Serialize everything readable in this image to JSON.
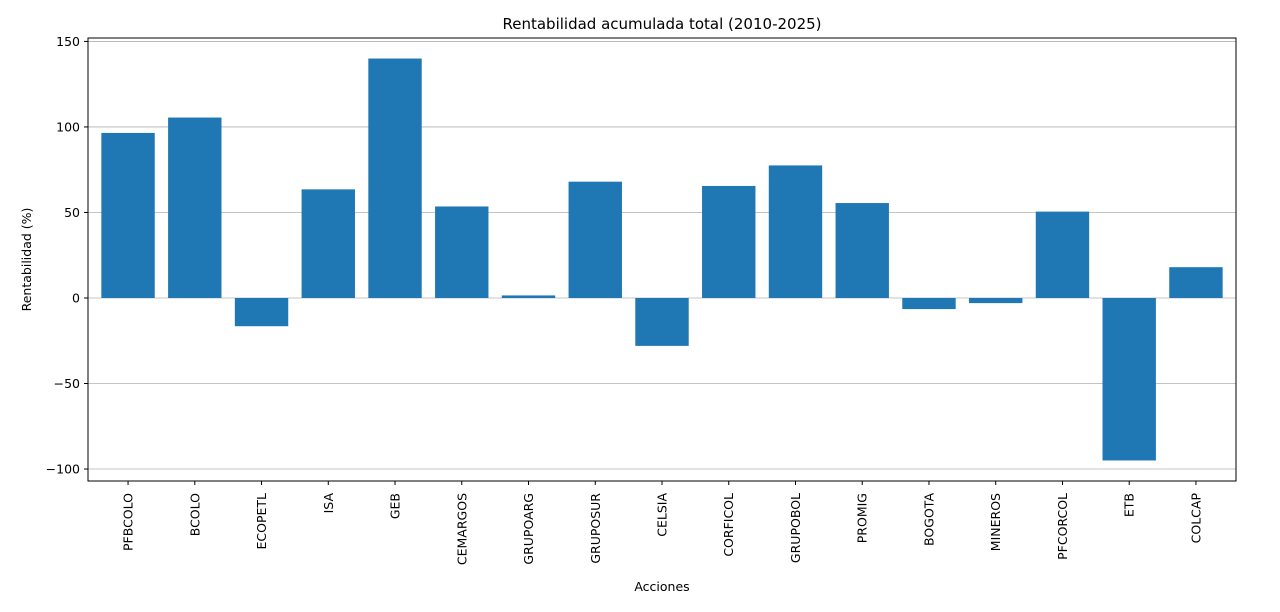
{
  "chart_data": {
    "type": "bar",
    "title": "Rentabilidad acumulada total (2010-2025)",
    "xlabel": "Acciones",
    "ylabel": "Rentabilidad (%)",
    "categories": [
      "PFBCOLO",
      "BCOLO",
      "ECOPETL",
      "ISA",
      "GEB",
      "CEMARGOS",
      "GRUPOARG",
      "GRUPOSUR",
      "CELSIA",
      "CORFICOL",
      "GRUPOBOL",
      "PROMIG",
      "BOGOTA",
      "MINEROS",
      "PFCORCOL",
      "ETB",
      "COLCAP"
    ],
    "values": [
      96.5,
      105.5,
      -16.5,
      63.5,
      140.0,
      53.5,
      1.5,
      68.0,
      -28.0,
      65.5,
      77.5,
      55.5,
      -6.5,
      -3.0,
      50.5,
      -95.0,
      18.0
    ],
    "ylim": [
      -107,
      152
    ],
    "yticks": [
      -100,
      -50,
      0,
      50,
      100,
      150
    ],
    "ytick_labels": [
      "−100",
      "−50",
      "0",
      "50",
      "100",
      "150"
    ],
    "grid": "y",
    "colors": {
      "bar": "#1f77b4",
      "grid": "#b0b0b0",
      "axis": "#000000"
    }
  }
}
